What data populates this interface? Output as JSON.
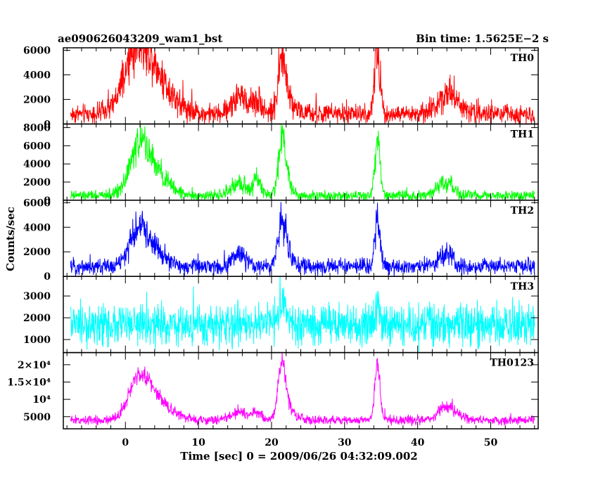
{
  "header": {
    "left_title": "ae090626043209_wam1_bst",
    "right_title": "Bin time: 1.5625E−2 s"
  },
  "axes": {
    "xlabel": "Time [sec] 0 = 2009/06/26 04:32:09.002",
    "ylabel": "Counts/sec"
  },
  "chart_data": {
    "type": "line",
    "x_range": [
      -8.5,
      56.5
    ],
    "x_ticks": [
      0,
      10,
      20,
      30,
      40,
      50
    ],
    "x_tick_labels": [
      "0",
      "10",
      "20",
      "30",
      "40",
      "50"
    ],
    "x_data_range": [
      -7.5,
      56.0
    ],
    "panels": [
      {
        "name": "TH0",
        "color": "#ff0000",
        "ylim": [
          0,
          6200
        ],
        "yticks": [
          0,
          2000,
          4000,
          6000
        ],
        "ytick_labels": [
          "0",
          "2000",
          "4000",
          "6000"
        ],
        "baseline": 800,
        "noise": 550,
        "peaks": [
          [
            1.5,
            3200,
            1.6
          ],
          [
            3.5,
            3300,
            2.5
          ],
          [
            15.5,
            1400,
            1.0
          ],
          [
            18.0,
            1100,
            0.8
          ],
          [
            21.4,
            3700,
            0.5
          ],
          [
            22.2,
            1200,
            1.0
          ],
          [
            34.5,
            4600,
            0.4
          ],
          [
            43.8,
            1100,
            1.2
          ],
          [
            45.0,
            800,
            1.5
          ]
        ]
      },
      {
        "name": "TH1",
        "color": "#00ff00",
        "ylim": [
          0,
          8400
        ],
        "yticks": [
          0,
          2000,
          4000,
          6000,
          8000
        ],
        "ytick_labels": [
          "0",
          "2000",
          "4000",
          "6000",
          "8000"
        ],
        "baseline": 500,
        "noise": 400,
        "peaks": [
          [
            1.8,
            3800,
            1.3
          ],
          [
            3.5,
            2800,
            2.0
          ],
          [
            15.5,
            1300,
            1.0
          ],
          [
            18.0,
            1800,
            0.6
          ],
          [
            21.4,
            5200,
            0.5
          ],
          [
            22.0,
            1500,
            0.8
          ],
          [
            34.5,
            6200,
            0.35
          ],
          [
            43.8,
            1400,
            1.0
          ]
        ]
      },
      {
        "name": "TH2",
        "color": "#0000ff",
        "ylim": [
          0,
          6200
        ],
        "yticks": [
          0,
          2000,
          4000,
          6000
        ],
        "ytick_labels": [
          "0",
          "2000",
          "4000",
          "6000"
        ],
        "baseline": 800,
        "noise": 450,
        "peaks": [
          [
            1.8,
            2100,
            1.2
          ],
          [
            3.2,
            1500,
            1.8
          ],
          [
            15.5,
            1100,
            0.8
          ],
          [
            21.4,
            3000,
            0.5
          ],
          [
            22.0,
            1200,
            0.8
          ],
          [
            34.5,
            3800,
            0.35
          ],
          [
            43.8,
            900,
            1.0
          ]
        ]
      },
      {
        "name": "TH3",
        "color": "#00ffff",
        "ylim": [
          400,
          3900
        ],
        "yticks": [
          1000,
          2000,
          3000
        ],
        "ytick_labels": [
          "1000",
          "2000",
          "3000"
        ],
        "baseline": 1650,
        "noise": 650,
        "peaks": [
          [
            21.4,
            900,
            0.6
          ],
          [
            34.5,
            700,
            0.4
          ]
        ]
      },
      {
        "name": "TH0123",
        "color": "#ff00ff",
        "ylim": [
          1500,
          23500
        ],
        "yticks": [
          5000,
          10000,
          15000,
          20000
        ],
        "ytick_labels": [
          "5000",
          "10⁴",
          "1.5×10⁴",
          "2×10⁴"
        ],
        "baseline": 4000,
        "noise": 900,
        "peaks": [
          [
            1.8,
            8000,
            1.3
          ],
          [
            3.5,
            7000,
            2.2
          ],
          [
            15.5,
            2500,
            1.0
          ],
          [
            18.0,
            2200,
            0.6
          ],
          [
            21.4,
            15000,
            0.5
          ],
          [
            22.2,
            3500,
            0.9
          ],
          [
            34.5,
            17000,
            0.35
          ],
          [
            43.8,
            3000,
            1.0
          ],
          [
            45.0,
            1200,
            1.5
          ]
        ]
      }
    ]
  }
}
